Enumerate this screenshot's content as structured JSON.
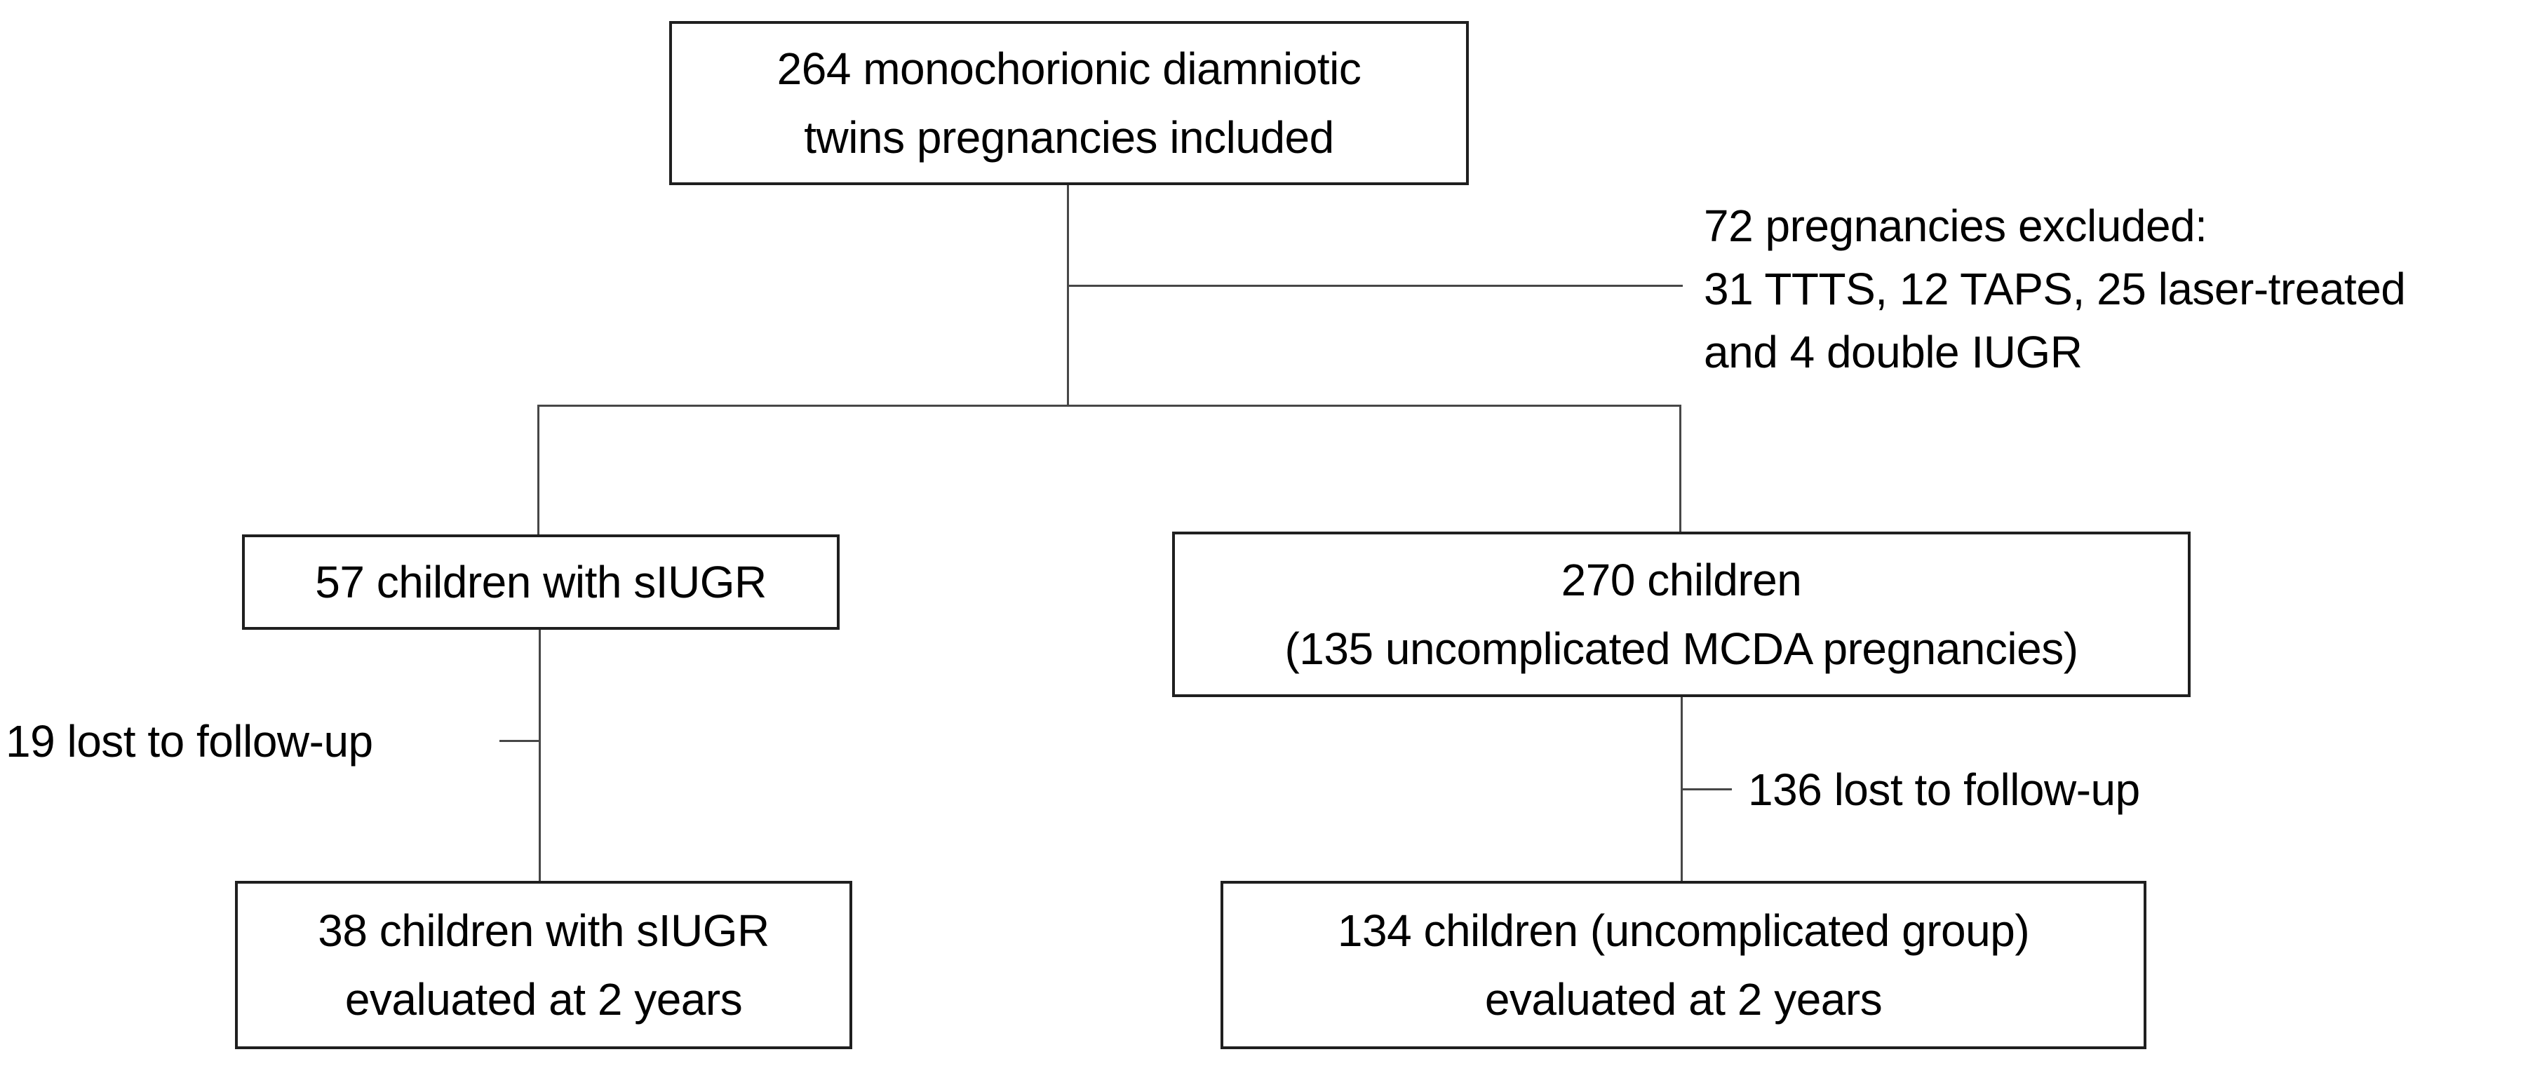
{
  "diagram": {
    "type": "flowchart",
    "colors": {
      "background": "#ffffff",
      "box_border": "#1f1f1f",
      "connector": "#474747",
      "text": "#000000"
    },
    "boxes": {
      "included": {
        "lines": [
          "264 monochorionic diamniotic",
          "twins pregnancies included"
        ]
      },
      "siugr": {
        "lines": [
          "57 children with sIUGR"
        ]
      },
      "uncomplicated": {
        "lines": [
          "270 children",
          "(135 uncomplicated MCDA pregnancies)"
        ]
      },
      "siugr_eval": {
        "lines": [
          "38 children with sIUGR",
          "evaluated at 2 years"
        ]
      },
      "uncomplicated_eval": {
        "lines": [
          "134 children (uncomplicated group)",
          "evaluated at 2 years"
        ]
      }
    },
    "annotations": {
      "excluded": {
        "lines": [
          "72 pregnancies excluded:",
          "31 TTTS, 12 TAPS, 25 laser-treated",
          "and 4 double IUGR"
        ]
      },
      "lost_left": "19 lost to follow-up",
      "lost_right": "136 lost to follow-up"
    }
  }
}
